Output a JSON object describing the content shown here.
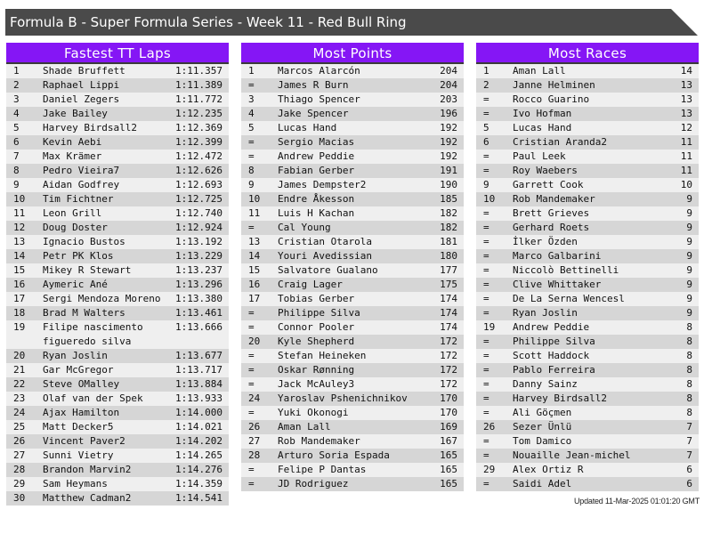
{
  "title": "Formula B - Super Formula Series - Week 11 - Red Bull Ring",
  "updated": "Updated 11-Mar-2025 01:01:20 GMT",
  "colors": {
    "header": "#8516f5",
    "titlebar": "#4a4a4a",
    "row_light": "#efefef",
    "row_dark": "#d6d6d6"
  },
  "tables": [
    {
      "title": "Fastest TT Laps",
      "rows": [
        [
          "1",
          "Shade Bruffett",
          "1:11.357"
        ],
        [
          "2",
          "Raphael Lippi",
          "1:11.389"
        ],
        [
          "3",
          "Daniel Zegers",
          "1:11.772"
        ],
        [
          "4",
          "Jake Bailey",
          "1:12.235"
        ],
        [
          "5",
          "Harvey Birdsall2",
          "1:12.369"
        ],
        [
          "6",
          "Kevin Aebi",
          "1:12.399"
        ],
        [
          "7",
          "Max Krämer",
          "1:12.472"
        ],
        [
          "8",
          "Pedro Vieira7",
          "1:12.626"
        ],
        [
          "9",
          "Aidan Godfrey",
          "1:12.693"
        ],
        [
          "10",
          "Tim Fichtner",
          "1:12.725"
        ],
        [
          "11",
          "Leon Grill",
          "1:12.740"
        ],
        [
          "12",
          "Doug Doster",
          "1:12.924"
        ],
        [
          "13",
          "Ignacio Bustos",
          "1:13.192"
        ],
        [
          "14",
          "Petr PK Klos",
          "1:13.229"
        ],
        [
          "15",
          "Mikey R Stewart",
          "1:13.237"
        ],
        [
          "16",
          "Aymeric Ané",
          "1:13.296"
        ],
        [
          "17",
          "Sergi Mendoza Moreno",
          "1:13.380"
        ],
        [
          "18",
          "Brad M Walters",
          "1:13.461"
        ],
        [
          "19",
          "Filipe nascimento figueredo silva",
          "1:13.666"
        ],
        [
          "20",
          "Ryan Joslin",
          "1:13.677"
        ],
        [
          "21",
          "Gar McGregor",
          "1:13.717"
        ],
        [
          "22",
          "Steve OMalley",
          "1:13.884"
        ],
        [
          "23",
          "Olaf van der Spek",
          "1:13.933"
        ],
        [
          "24",
          "Ajax Hamilton",
          "1:14.000"
        ],
        [
          "25",
          "Matt Decker5",
          "1:14.021"
        ],
        [
          "26",
          "Vincent Paver2",
          "1:14.202"
        ],
        [
          "27",
          "Sunni Vietry",
          "1:14.265"
        ],
        [
          "28",
          "Brandon Marvin2",
          "1:14.276"
        ],
        [
          "29",
          "Sam Heymans",
          "1:14.359"
        ],
        [
          "30",
          "Matthew Cadman2",
          "1:14.541"
        ]
      ]
    },
    {
      "title": "Most Points",
      "rows": [
        [
          "1",
          "Marcos Alarcón",
          "204"
        ],
        [
          "=",
          "James R Burn",
          "204"
        ],
        [
          "3",
          "Thiago Spencer",
          "203"
        ],
        [
          "4",
          "Jake Spencer",
          "196"
        ],
        [
          "5",
          "Lucas Hand",
          "192"
        ],
        [
          "=",
          "Sergio Macias",
          "192"
        ],
        [
          "=",
          "Andrew Peddie",
          "192"
        ],
        [
          "8",
          "Fabian Gerber",
          "191"
        ],
        [
          "9",
          "James Dempster2",
          "190"
        ],
        [
          "10",
          "Endre Åkesson",
          "185"
        ],
        [
          "11",
          "Luis H Kachan",
          "182"
        ],
        [
          "=",
          "Cal Young",
          "182"
        ],
        [
          "13",
          "Cristian Otarola",
          "181"
        ],
        [
          "14",
          "Youri Avedissian",
          "180"
        ],
        [
          "15",
          "Salvatore Gualano",
          "177"
        ],
        [
          "16",
          "Craig Lager",
          "175"
        ],
        [
          "17",
          "Tobias Gerber",
          "174"
        ],
        [
          "=",
          "Philippe Silva",
          "174"
        ],
        [
          "=",
          "Connor Pooler",
          "174"
        ],
        [
          "20",
          "Kyle Shepherd",
          "172"
        ],
        [
          "=",
          "Stefan Heineken",
          "172"
        ],
        [
          "=",
          "Oskar Rønning",
          "172"
        ],
        [
          "=",
          "Jack McAuley3",
          "172"
        ],
        [
          "24",
          "Yaroslav Pshenichnikov",
          "170"
        ],
        [
          "=",
          "Yuki Okonogi",
          "170"
        ],
        [
          "26",
          "Aman Lall",
          "169"
        ],
        [
          "27",
          "Rob Mandemaker",
          "167"
        ],
        [
          "28",
          "Arturo Soria Espada",
          "165"
        ],
        [
          "=",
          "Felipe P Dantas",
          "165"
        ],
        [
          "=",
          "JD Rodriguez",
          "165"
        ]
      ]
    },
    {
      "title": "Most Races",
      "rows": [
        [
          "1",
          "Aman Lall",
          "14"
        ],
        [
          "2",
          "Janne Helminen",
          "13"
        ],
        [
          "=",
          "Rocco Guarino",
          "13"
        ],
        [
          "=",
          "Ivo Hofman",
          "13"
        ],
        [
          "5",
          "Lucas Hand",
          "12"
        ],
        [
          "6",
          "Cristian Aranda2",
          "11"
        ],
        [
          "=",
          "Paul Leek",
          "11"
        ],
        [
          "=",
          "Roy Waebers",
          "11"
        ],
        [
          "9",
          "Garrett Cook",
          "10"
        ],
        [
          "10",
          "Rob Mandemaker",
          "9"
        ],
        [
          "=",
          "Brett Grieves",
          "9"
        ],
        [
          "=",
          "Gerhard Roets",
          "9"
        ],
        [
          "=",
          "İlker Özden",
          "9"
        ],
        [
          "=",
          "Marco Galbarini",
          "9"
        ],
        [
          "=",
          "Niccolò Bettinelli",
          "9"
        ],
        [
          "=",
          "Clive Whittaker",
          "9"
        ],
        [
          "=",
          "De La Serna Wencesl",
          "9"
        ],
        [
          "=",
          "Ryan Joslin",
          "9"
        ],
        [
          "19",
          "Andrew Peddie",
          "8"
        ],
        [
          "=",
          "Philippe Silva",
          "8"
        ],
        [
          "=",
          "Scott Haddock",
          "8"
        ],
        [
          "=",
          "Pablo Ferreira",
          "8"
        ],
        [
          "=",
          "Danny Sainz",
          "8"
        ],
        [
          "=",
          "Harvey Birdsall2",
          "8"
        ],
        [
          "=",
          "Ali Göçmen",
          "8"
        ],
        [
          "26",
          "Sezer Ünlü",
          "7"
        ],
        [
          "=",
          "Tom Damico",
          "7"
        ],
        [
          "=",
          "Nouaille Jean-michel",
          "7"
        ],
        [
          "29",
          "Alex Ortiz R",
          "6"
        ],
        [
          "=",
          "Saidi Adel",
          "6"
        ]
      ]
    }
  ]
}
